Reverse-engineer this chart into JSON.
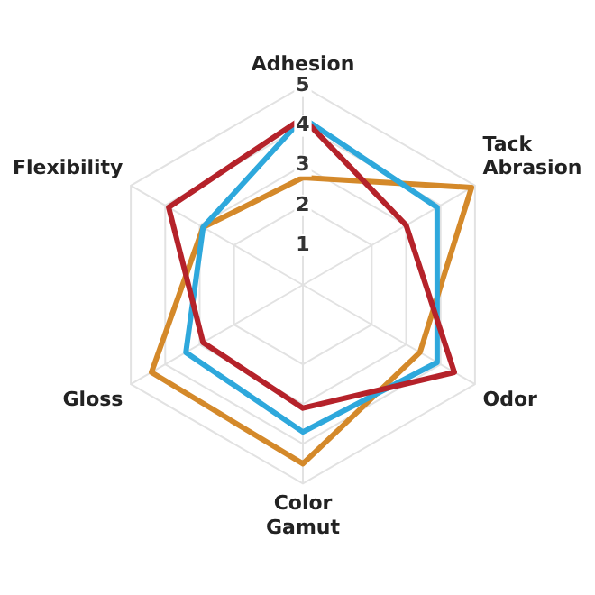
{
  "chart_data": {
    "type": "radar",
    "categories": [
      "Adhesion",
      "Tack Abrasion",
      "Odor",
      "Color Gamut",
      "Gloss",
      "Flexibility"
    ],
    "series": [
      {
        "color": "#b5222a",
        "values": [
          4.2,
          3.0,
          4.4,
          3.1,
          2.9,
          3.9
        ]
      },
      {
        "color": "#2ea8dc",
        "values": [
          4.2,
          3.9,
          3.9,
          3.7,
          3.4,
          2.9
        ]
      },
      {
        "color": "#d4892a",
        "values": [
          2.7,
          4.9,
          3.4,
          4.5,
          4.4,
          2.9
        ]
      }
    ],
    "ylim": [
      0,
      5
    ],
    "yticks": [
      1,
      2,
      3,
      4,
      5
    ],
    "grid": true,
    "legend": false,
    "marker": "none",
    "line_style": "solid"
  }
}
